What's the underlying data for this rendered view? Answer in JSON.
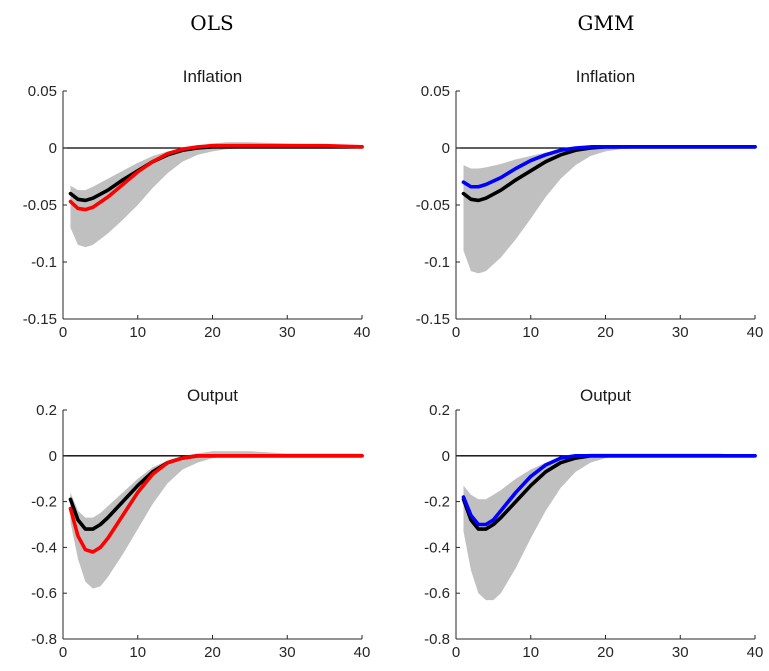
{
  "column_titles": [
    "OLS",
    "GMM"
  ],
  "colors": {
    "band": "#c0c0c0",
    "black": "#000000",
    "red": "#ff0000",
    "blue": "#0000ff"
  },
  "chart_data": [
    {
      "type": "area",
      "column": "OLS",
      "title": "Inflation",
      "xlim": [
        0,
        40
      ],
      "ylim": [
        -0.15,
        0.05
      ],
      "xticks": [
        0,
        10,
        20,
        30,
        40
      ],
      "yticks": [
        0.05,
        0,
        -0.05,
        -0.1,
        -0.15
      ],
      "ytick_labels": [
        "0.05",
        "0",
        "-0.05",
        "-0.1",
        "-0.15"
      ],
      "x": [
        1,
        2,
        3,
        4,
        6,
        8,
        10,
        12,
        14,
        16,
        18,
        20,
        22,
        25,
        30,
        35,
        40
      ],
      "band_upper": [
        -0.033,
        -0.037,
        -0.037,
        -0.034,
        -0.027,
        -0.02,
        -0.013,
        -0.007,
        -0.003,
        0.0,
        0.002,
        0.004,
        0.005,
        0.005,
        0.004,
        0.003,
        0.002
      ],
      "band_lower": [
        -0.07,
        -0.085,
        -0.087,
        -0.085,
        -0.075,
        -0.063,
        -0.05,
        -0.035,
        -0.022,
        -0.012,
        -0.006,
        -0.003,
        -0.001,
        0.0,
        0.0,
        0.0,
        0.0
      ],
      "series": [
        {
          "color": "black",
          "values": [
            -0.04,
            -0.045,
            -0.046,
            -0.044,
            -0.037,
            -0.028,
            -0.02,
            -0.012,
            -0.006,
            -0.002,
            0.0,
            0.001,
            0.001,
            0.001,
            0.001,
            0.001,
            0.001
          ]
        },
        {
          "color": "red",
          "values": [
            -0.047,
            -0.053,
            -0.054,
            -0.052,
            -0.043,
            -0.032,
            -0.021,
            -0.012,
            -0.005,
            -0.001,
            0.001,
            0.002,
            0.002,
            0.002,
            0.002,
            0.002,
            0.001
          ]
        }
      ]
    },
    {
      "type": "area",
      "column": "GMM",
      "title": "Inflation",
      "xlim": [
        0,
        40
      ],
      "ylim": [
        -0.15,
        0.05
      ],
      "xticks": [
        0,
        10,
        20,
        30,
        40
      ],
      "yticks": [
        0.05,
        0,
        -0.05,
        -0.1,
        -0.15
      ],
      "ytick_labels": [
        "0.05",
        "0",
        "-0.05",
        "-0.1",
        "-0.15"
      ],
      "x": [
        1,
        2,
        3,
        4,
        6,
        8,
        10,
        12,
        14,
        16,
        18,
        20,
        22,
        25,
        30,
        35,
        40
      ],
      "band_upper": [
        -0.015,
        -0.018,
        -0.018,
        -0.017,
        -0.014,
        -0.01,
        -0.007,
        -0.004,
        -0.002,
        -0.001,
        0.0,
        0.001,
        0.001,
        0.001,
        0.001,
        0.001,
        0.001
      ],
      "band_lower": [
        -0.09,
        -0.108,
        -0.11,
        -0.108,
        -0.096,
        -0.08,
        -0.062,
        -0.043,
        -0.027,
        -0.015,
        -0.007,
        -0.003,
        -0.001,
        0.0,
        0.0,
        0.0,
        0.0
      ],
      "series": [
        {
          "color": "black",
          "values": [
            -0.04,
            -0.045,
            -0.046,
            -0.044,
            -0.037,
            -0.028,
            -0.02,
            -0.012,
            -0.006,
            -0.002,
            0.0,
            0.001,
            0.001,
            0.001,
            0.001,
            0.001,
            0.001
          ]
        },
        {
          "color": "blue",
          "values": [
            -0.03,
            -0.034,
            -0.034,
            -0.032,
            -0.026,
            -0.018,
            -0.011,
            -0.006,
            -0.002,
            0.0,
            0.001,
            0.001,
            0.001,
            0.001,
            0.001,
            0.001,
            0.001
          ]
        }
      ]
    },
    {
      "type": "area",
      "column": "OLS",
      "title": "Output",
      "xlim": [
        0,
        40
      ],
      "ylim": [
        -0.8,
        0.2
      ],
      "xticks": [
        0,
        10,
        20,
        30,
        40
      ],
      "yticks": [
        0.2,
        0,
        -0.2,
        -0.4,
        -0.6,
        -0.8
      ],
      "ytick_labels": [
        "0.2",
        "0",
        "-0.2",
        "-0.4",
        "-0.6",
        "-0.8"
      ],
      "x": [
        1,
        2,
        3,
        4,
        5,
        6,
        8,
        10,
        12,
        14,
        16,
        18,
        20,
        22,
        25,
        30,
        35,
        40
      ],
      "band_upper": [
        -0.16,
        -0.24,
        -0.27,
        -0.27,
        -0.25,
        -0.22,
        -0.16,
        -0.1,
        -0.05,
        -0.02,
        0.0,
        0.01,
        0.02,
        0.02,
        0.02,
        0.01,
        0.01,
        0.01
      ],
      "band_lower": [
        -0.29,
        -0.45,
        -0.55,
        -0.58,
        -0.57,
        -0.53,
        -0.43,
        -0.32,
        -0.21,
        -0.12,
        -0.06,
        -0.03,
        -0.01,
        0.0,
        0.0,
        0.0,
        0.0,
        0.0
      ],
      "series": [
        {
          "color": "black",
          "values": [
            -0.19,
            -0.28,
            -0.32,
            -0.32,
            -0.3,
            -0.27,
            -0.2,
            -0.13,
            -0.07,
            -0.03,
            -0.01,
            0.0,
            0.0,
            0.0,
            0.0,
            0.0,
            0.0,
            0.0
          ]
        },
        {
          "color": "red",
          "values": [
            -0.23,
            -0.35,
            -0.41,
            -0.42,
            -0.4,
            -0.36,
            -0.26,
            -0.16,
            -0.08,
            -0.03,
            -0.01,
            0.0,
            0.0,
            0.0,
            0.0,
            0.0,
            0.0,
            0.0
          ]
        }
      ]
    },
    {
      "type": "area",
      "column": "GMM",
      "title": "Output",
      "xlim": [
        0,
        40
      ],
      "ylim": [
        -0.8,
        0.2
      ],
      "xticks": [
        0,
        10,
        20,
        30,
        40
      ],
      "yticks": [
        0.2,
        0,
        -0.2,
        -0.4,
        -0.6,
        -0.8
      ],
      "ytick_labels": [
        "0.2",
        "0",
        "-0.2",
        "-0.4",
        "-0.6",
        "-0.8"
      ],
      "x": [
        1,
        2,
        3,
        4,
        5,
        6,
        8,
        10,
        12,
        14,
        16,
        18,
        20,
        22,
        25,
        30,
        35,
        40
      ],
      "band_upper": [
        -0.13,
        -0.17,
        -0.19,
        -0.19,
        -0.17,
        -0.15,
        -0.1,
        -0.06,
        -0.03,
        -0.01,
        0.0,
        0.01,
        0.01,
        0.01,
        0.01,
        0.01,
        0.01,
        0.0
      ],
      "band_lower": [
        -0.33,
        -0.5,
        -0.6,
        -0.63,
        -0.63,
        -0.6,
        -0.49,
        -0.36,
        -0.24,
        -0.14,
        -0.07,
        -0.03,
        -0.01,
        0.0,
        0.0,
        0.0,
        0.0,
        0.0
      ],
      "series": [
        {
          "color": "black",
          "values": [
            -0.19,
            -0.28,
            -0.32,
            -0.32,
            -0.3,
            -0.27,
            -0.2,
            -0.13,
            -0.07,
            -0.03,
            -0.01,
            0.0,
            0.0,
            0.0,
            0.0,
            0.0,
            0.0,
            0.0
          ]
        },
        {
          "color": "blue",
          "values": [
            -0.18,
            -0.26,
            -0.3,
            -0.3,
            -0.28,
            -0.24,
            -0.16,
            -0.09,
            -0.04,
            -0.01,
            0.0,
            0.0,
            0.0,
            0.0,
            0.0,
            0.0,
            0.0,
            0.0
          ]
        }
      ]
    }
  ]
}
